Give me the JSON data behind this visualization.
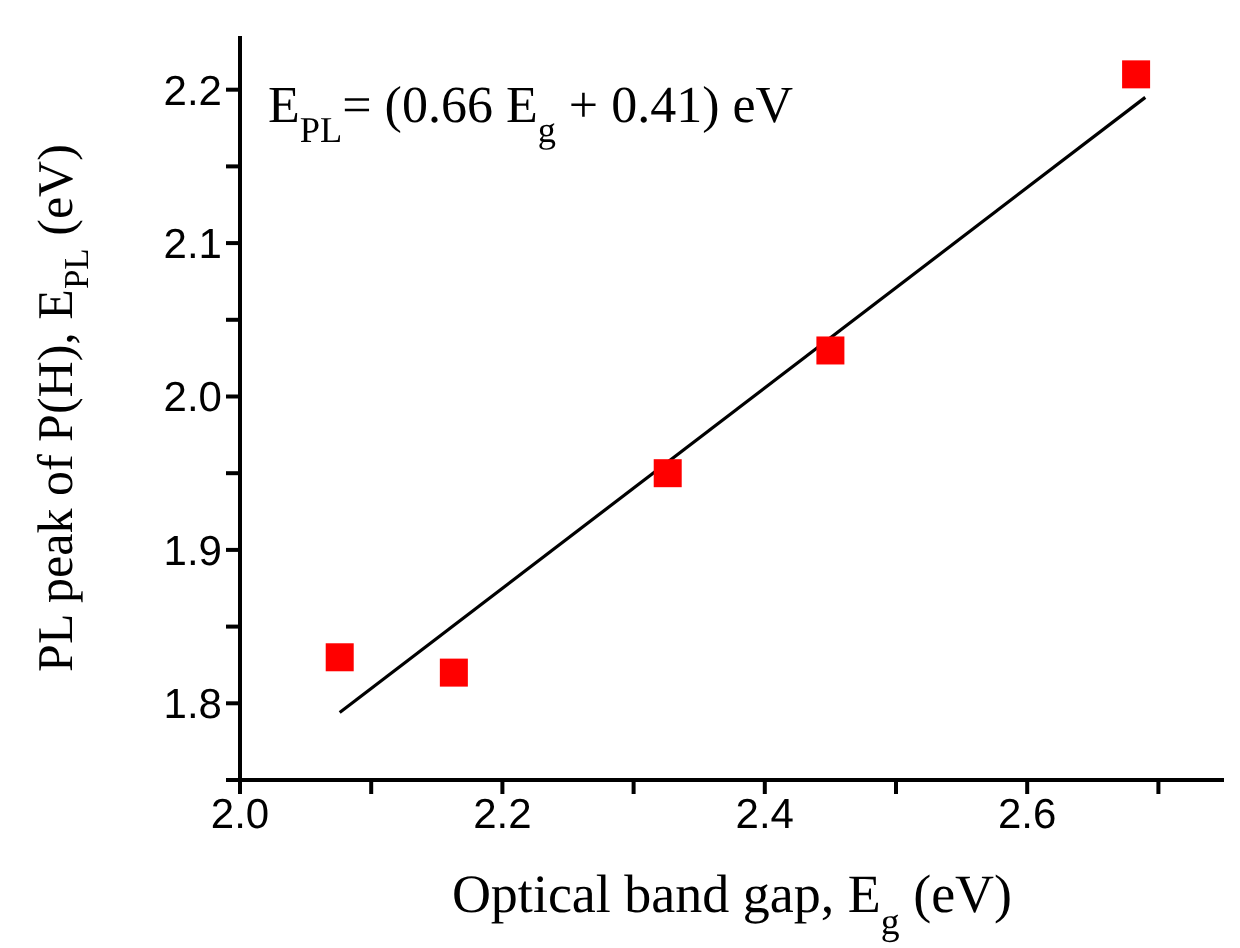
{
  "chart_data": {
    "type": "scatter",
    "xlabel": "Optical band gap, E$_{g}$ (eV)",
    "ylabel": "PL peak of P(H), E$_{PL}$ (eV)",
    "annotations": [
      "E$_{PL}$= (0.66 E$_{g}$ + 0.41) eV"
    ],
    "xlim": [
      2.0,
      2.75
    ],
    "ylim": [
      1.75,
      2.235
    ],
    "xticks": [
      {
        "value": 2.0,
        "label": "2.0"
      },
      {
        "value": 2.1,
        "label": null
      },
      2.2,
      {
        "value": 2.3,
        "label": null
      },
      2.4,
      {
        "value": 2.5,
        "label": null
      },
      2.6,
      {
        "value": 2.7,
        "label": null
      }
    ],
    "yticks": [
      {
        "value": 1.75,
        "label": null
      },
      1.8,
      {
        "value": 1.85,
        "label": null
      },
      1.9,
      {
        "value": 1.95,
        "label": null
      },
      {
        "value": 2.0,
        "label": "2.0"
      },
      {
        "value": 2.05,
        "label": null
      },
      2.1,
      {
        "value": 2.15,
        "label": null
      },
      2.2
    ],
    "grid": false,
    "series": [
      {
        "color": "#ff0000",
        "marker": "square",
        "x": [
          2.076,
          2.163,
          2.326,
          2.45,
          2.683
        ],
        "values": [
          1.83,
          1.82,
          1.95,
          2.03,
          2.21
        ]
      },
      {
        "type": "line",
        "color": "#000000",
        "marker": "none",
        "line_style": "solid",
        "x": [
          2.076,
          2.69
        ],
        "values": [
          1.794,
          2.195
        ]
      }
    ]
  }
}
